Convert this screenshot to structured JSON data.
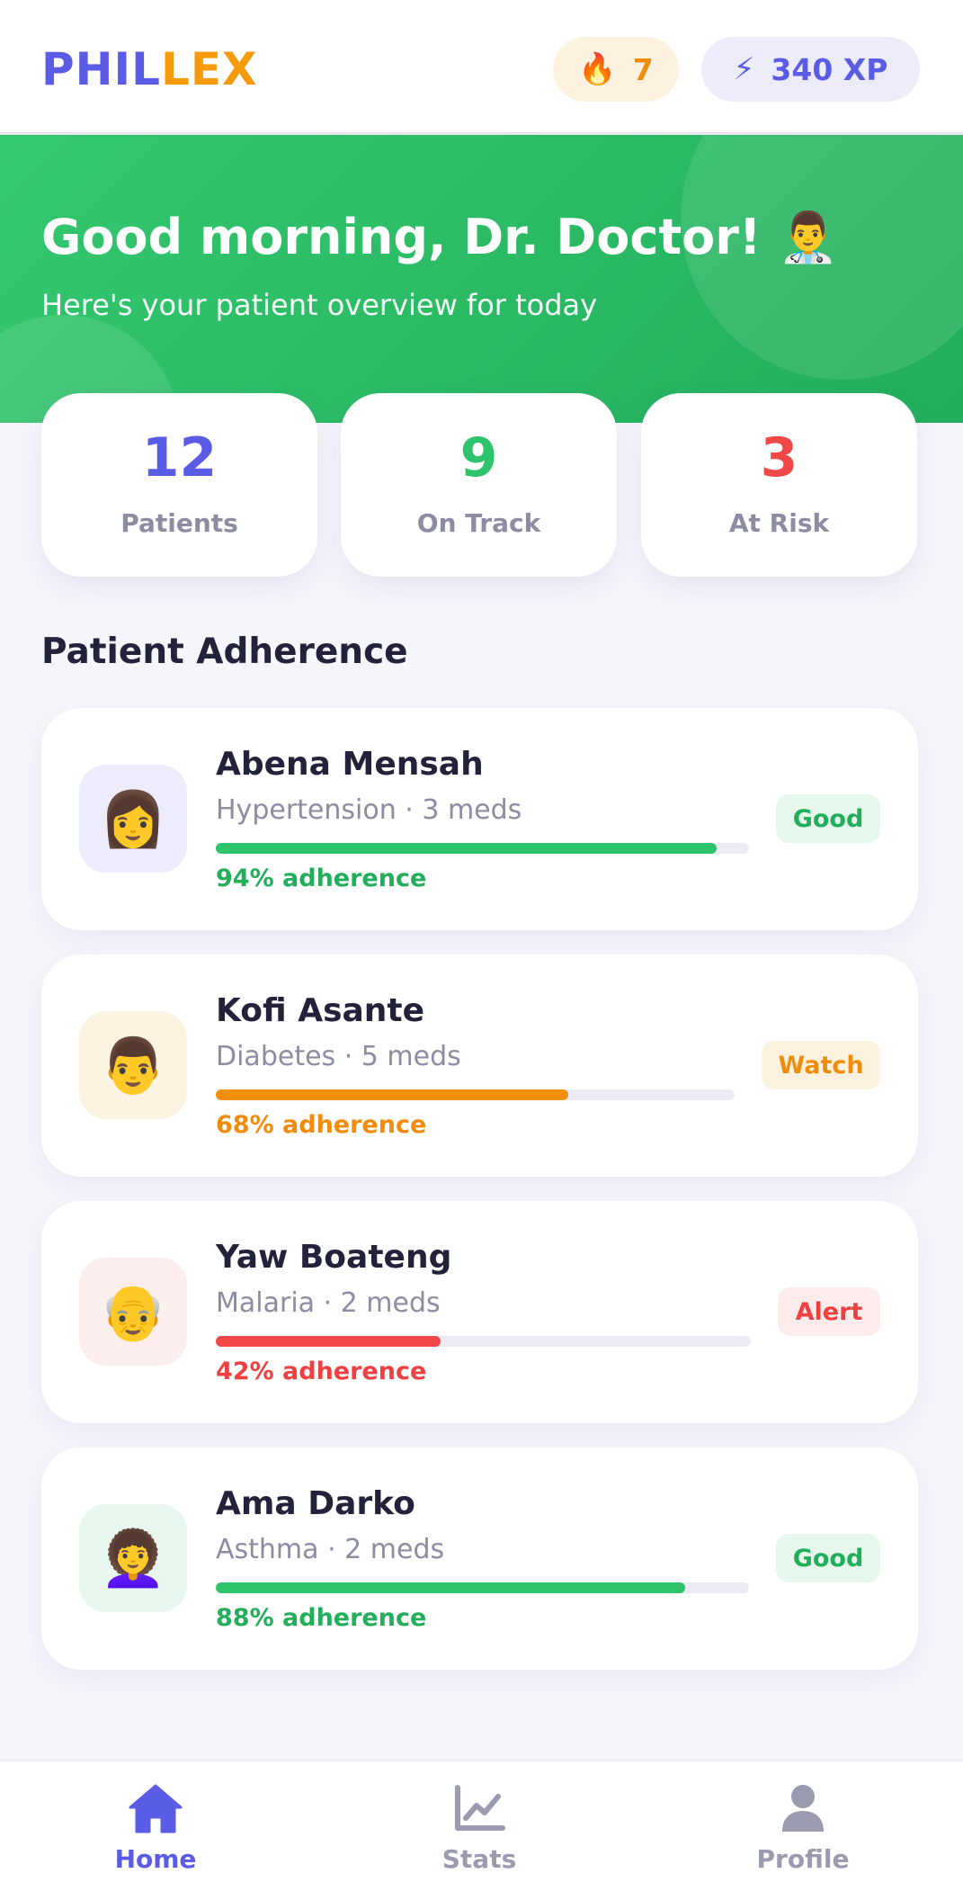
{
  "header": {
    "logo_part1": "PHIL",
    "logo_part2": "LEX",
    "streak_icon": "🔥",
    "streak_value": "7",
    "xp_icon": "⚡",
    "xp_value": "340 XP"
  },
  "hero": {
    "title": "Good morning, Dr. Doctor! 👨‍⚕️",
    "subtitle": "Here's your patient overview for today"
  },
  "stats": [
    {
      "value": "12",
      "label": "Patients",
      "color": "#5b5ce6"
    },
    {
      "value": "9",
      "label": "On Track",
      "color": "#2fc46b"
    },
    {
      "value": "3",
      "label": "At Risk",
      "color": "#f04848"
    }
  ],
  "section_title": "Patient Adherence",
  "patients": [
    {
      "avatar": "👩",
      "avatar_bg": "#ececfd",
      "name": "Abena Mensah",
      "meta": "Hypertension · 3 meds",
      "adherence": 94,
      "adherence_text": "94% adherence",
      "status": "Good",
      "color": "#2fc46b",
      "text_color": "#22ae5b",
      "badge_bg": "#e6f7ec"
    },
    {
      "avatar": "👨",
      "avatar_bg": "#fdf3e3",
      "name": "Kofi Asante",
      "meta": "Diabetes · 5 meds",
      "adherence": 68,
      "adherence_text": "68% adherence",
      "status": "Watch",
      "color": "#f5900b",
      "text_color": "#f08c0a",
      "badge_bg": "#fdf2e0"
    },
    {
      "avatar": "👴",
      "avatar_bg": "#fdeeee",
      "name": "Yaw Boateng",
      "meta": "Malaria · 2 meds",
      "adherence": 42,
      "adherence_text": "42% adherence",
      "status": "Alert",
      "color": "#f04848",
      "text_color": "#ee4040",
      "badge_bg": "#fdecec"
    },
    {
      "avatar": "👩‍🦱",
      "avatar_bg": "#e8f7ed",
      "name": "Ama Darko",
      "meta": "Asthma · 2 meds",
      "adherence": 88,
      "adherence_text": "88% adherence",
      "status": "Good",
      "color": "#2fc46b",
      "text_color": "#22ae5b",
      "badge_bg": "#e6f7ec"
    }
  ],
  "nav": {
    "home": "Home",
    "stats": "Stats",
    "profile": "Profile",
    "home_icon": "home-icon",
    "stats_icon": "chart-line-icon",
    "profile_icon": "user-icon"
  }
}
